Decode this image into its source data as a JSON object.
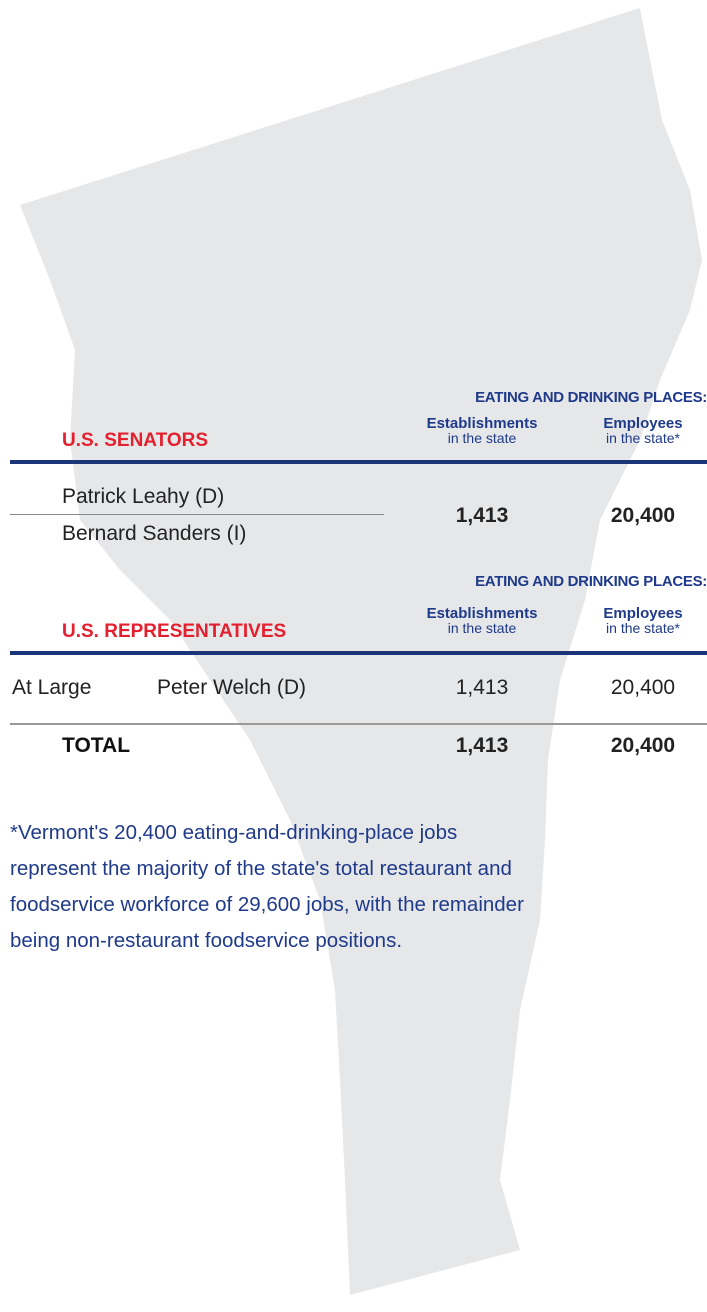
{
  "senators": {
    "section_header": "EATING AND DRINKING PLACES:",
    "title": "U.S. SENATORS",
    "columns": [
      {
        "label": "Establishments",
        "sublabel": "in the state"
      },
      {
        "label": "Employees",
        "sublabel": "in the state*"
      }
    ],
    "names": [
      "Patrick Leahy (D)",
      "Bernard Sanders (I)"
    ],
    "establishments": "1,413",
    "employees": "20,400"
  },
  "representatives": {
    "section_header": "EATING AND DRINKING PLACES:",
    "title": "U.S. REPRESENTATIVES",
    "columns": [
      {
        "label": "Establishments",
        "sublabel": "in the state"
      },
      {
        "label": "Employees",
        "sublabel": "in the state*"
      }
    ],
    "rows": [
      [
        "At Large",
        "Peter Welch (D)",
        "1,413",
        "20,400"
      ]
    ],
    "total": {
      "label": "TOTAL",
      "establishments": "1,413",
      "employees": "20,400"
    }
  },
  "footnote": [
    "*Vermont's 20,400 eating-and-drinking-place jobs",
    "represent the majority of the state's total restaurant and",
    "foodservice workforce of 29,600 jobs, with the remainder",
    "being non-restaurant foodservice positions."
  ]
}
